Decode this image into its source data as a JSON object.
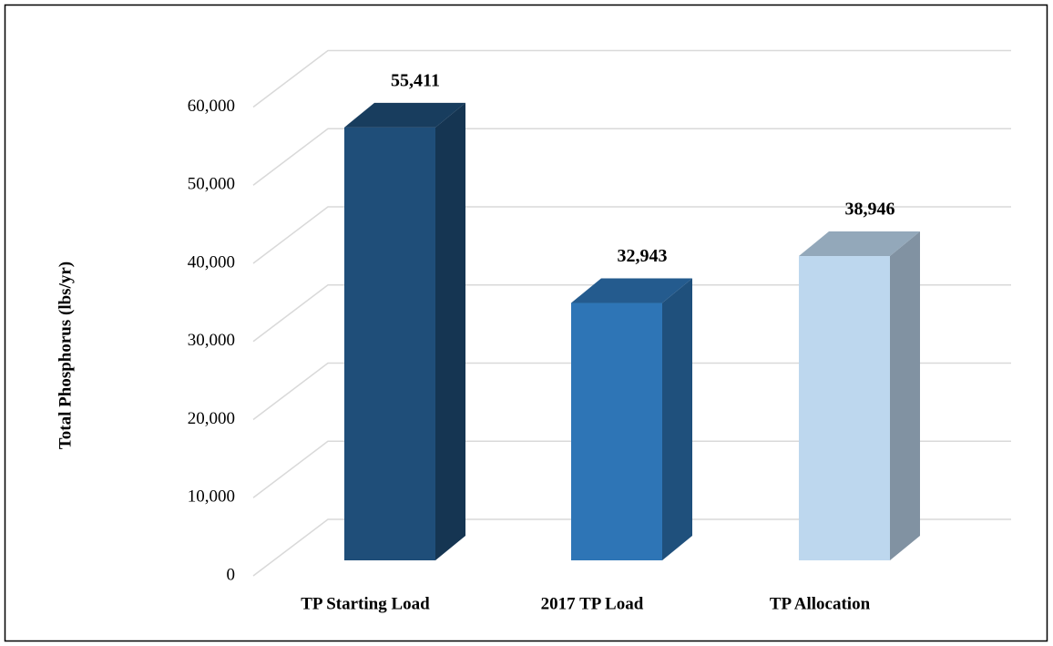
{
  "chart_data": {
    "type": "bar3d",
    "y_label": "Total Phosphorus (lbs/yr)",
    "categories": [
      "TP Starting Load",
      "2017 TP Load",
      "TP Allocation"
    ],
    "values": [
      55411,
      32943,
      38946
    ],
    "value_labels": [
      "55,411",
      "32,943",
      "38,946"
    ],
    "colors": [
      "#1f4e79",
      "#2e75b6",
      "#bdd7ee"
    ],
    "ylim": [
      0,
      60000
    ],
    "yticks": [
      0,
      {
        "value": 10000,
        "label": "10,000"
      },
      {
        "value": 20000,
        "label": "20,000"
      },
      {
        "value": 30000,
        "label": "30,000"
      },
      {
        "value": 40000,
        "label": "40,000"
      },
      {
        "value": 50000,
        "label": "50,000"
      },
      {
        "value": 60000,
        "label": "60,000"
      }
    ],
    "grid": true
  }
}
